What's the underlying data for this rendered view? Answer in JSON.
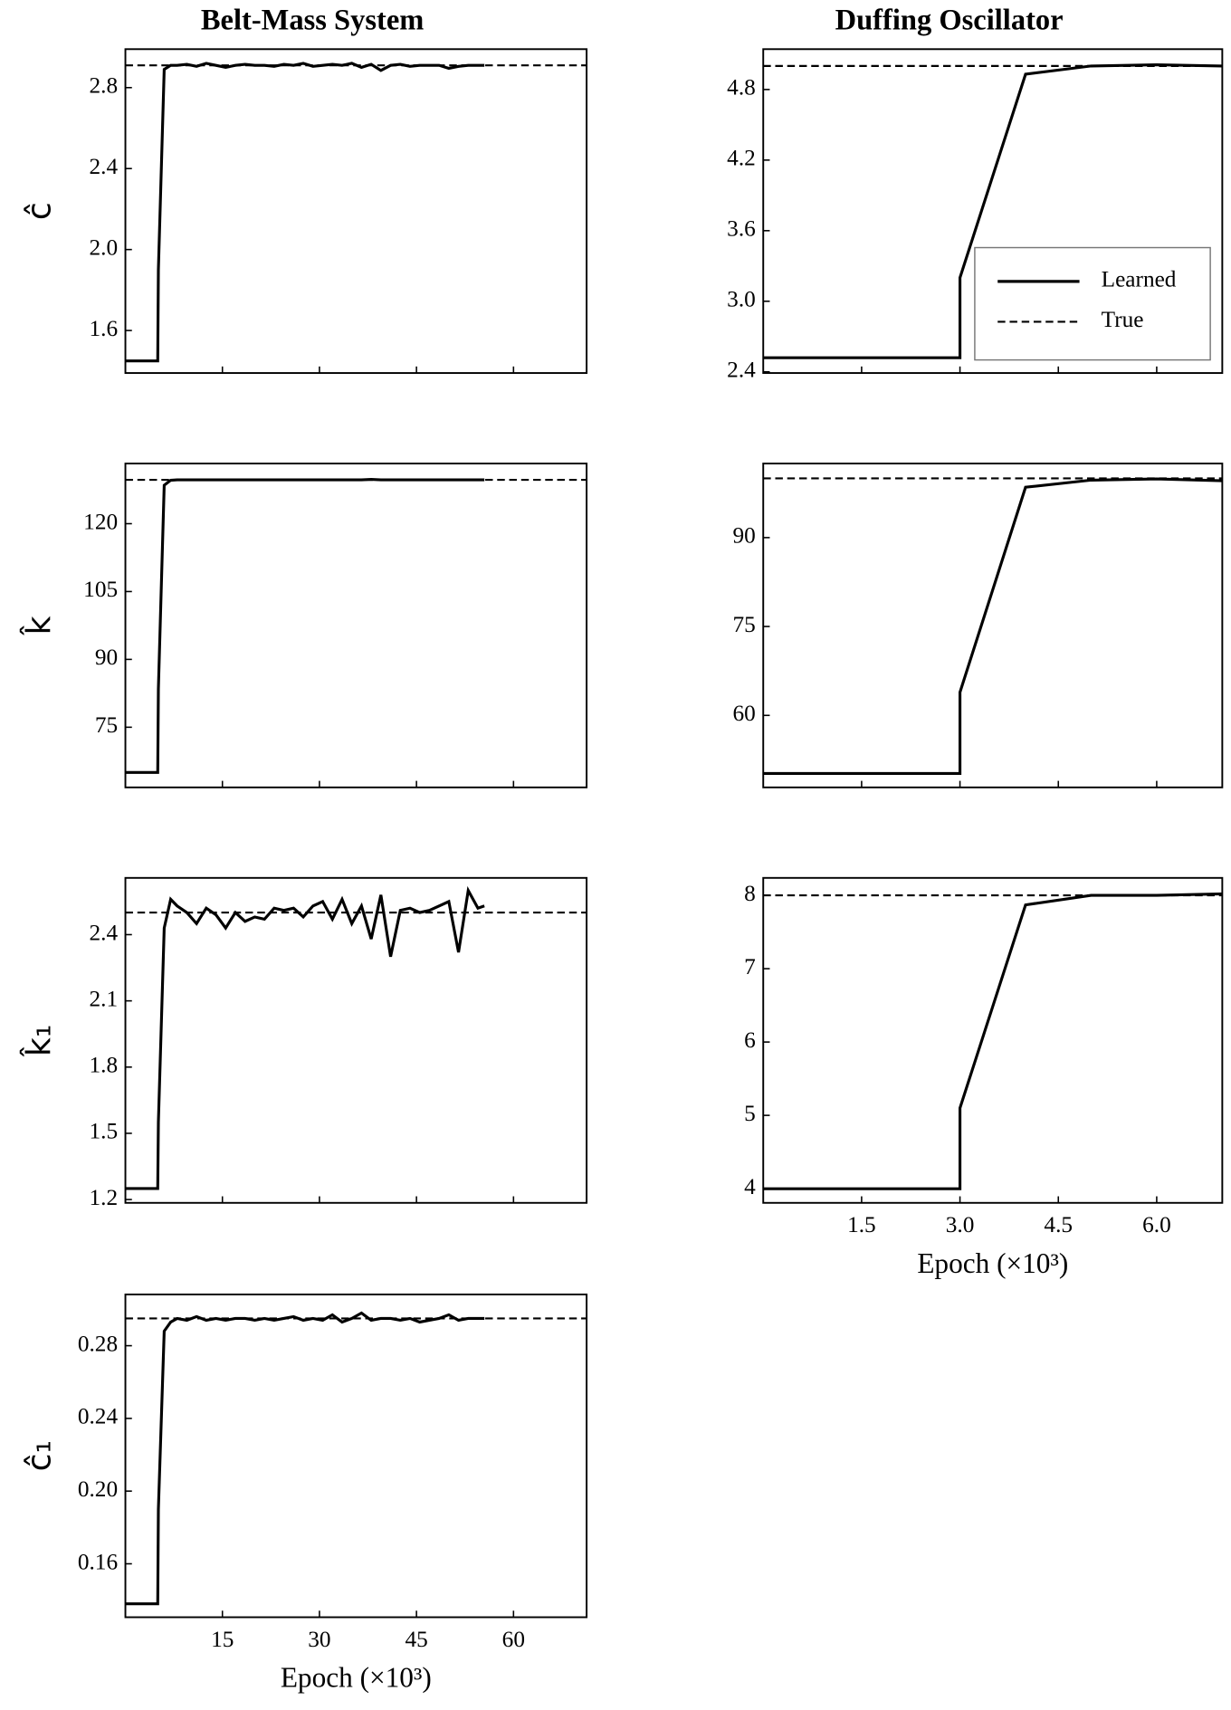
{
  "chart_data": [
    {
      "type": "line",
      "title": "Belt-Mass System",
      "ylabel": "ĉ",
      "x": [
        0,
        5,
        5.1,
        6,
        7,
        8,
        9.5,
        11,
        12.5,
        14,
        15.5,
        17,
        18.5,
        20,
        21.5,
        23,
        24.5,
        26,
        27.5,
        29,
        30.5,
        32,
        33.5,
        35,
        36.5,
        38,
        39.5,
        41,
        42.5,
        44,
        45.5,
        47,
        48.5,
        50,
        51.5,
        53,
        54.5,
        55.5
      ],
      "series": [
        {
          "color": "#000000",
          "linestyle": "solid",
          "values": [
            1.45,
            1.45,
            1.9,
            2.89,
            2.91,
            2.91,
            2.915,
            2.905,
            2.92,
            2.91,
            2.9,
            2.91,
            2.915,
            2.91,
            2.91,
            2.905,
            2.915,
            2.91,
            2.92,
            2.905,
            2.91,
            2.915,
            2.91,
            2.92,
            2.9,
            2.915,
            2.885,
            2.91,
            2.915,
            2.905,
            2.91,
            2.91,
            2.91,
            2.895,
            2.905,
            2.91,
            2.91,
            2.91
          ]
        },
        {
          "color": "#000000",
          "linestyle": "dashed",
          "x": [
            0,
            71.3
          ],
          "values": [
            2.91,
            2.91
          ]
        }
      ],
      "xlim": [
        0,
        71.3
      ],
      "xticks": [
        15,
        30,
        45,
        60
      ],
      "show_xtick_labels": false,
      "ylim": [
        1.39,
        2.99
      ],
      "yticks": [
        1.6,
        {
          "value": 2.0,
          "label": "2.0"
        },
        2.4,
        2.8
      ]
    },
    {
      "type": "line",
      "ylabel": "k̂",
      "x": [
        0,
        5,
        5.1,
        6,
        7,
        8,
        9.5,
        11,
        12.5,
        14,
        15.5,
        17,
        18.5,
        20,
        21.5,
        23,
        24.5,
        26,
        27.5,
        29,
        30.5,
        32,
        33.5,
        35,
        36.5,
        38,
        39.5,
        41,
        42.5,
        44,
        45.5,
        47,
        48.5,
        50,
        51.5,
        53,
        54.5,
        55.5
      ],
      "series": [
        {
          "color": "#000000",
          "linestyle": "solid",
          "values": [
            65,
            65,
            83.5,
            128.5,
            129.6,
            129.7,
            129.7,
            129.7,
            129.7,
            129.7,
            129.7,
            129.7,
            129.7,
            129.7,
            129.7,
            129.7,
            129.7,
            129.7,
            129.7,
            129.7,
            129.7,
            129.7,
            129.7,
            129.7,
            129.7,
            129.8,
            129.7,
            129.7,
            129.7,
            129.7,
            129.7,
            129.7,
            129.7,
            129.7,
            129.7,
            129.7,
            129.7,
            129.7
          ]
        },
        {
          "color": "#000000",
          "linestyle": "dashed",
          "x": [
            0,
            71.3
          ],
          "values": [
            129.7,
            129.7
          ]
        }
      ],
      "xlim": [
        0,
        71.3
      ],
      "xticks": [
        15,
        30,
        45,
        60
      ],
      "show_xtick_labels": false,
      "ylim": [
        61.7,
        133.3
      ],
      "yticks": [
        75,
        90,
        105,
        120
      ]
    },
    {
      "type": "line",
      "ylabel": "k̂₁",
      "x": [
        0,
        5,
        5.1,
        6,
        7,
        8,
        9.5,
        11,
        12.5,
        14,
        15.5,
        17,
        18.5,
        20,
        21.5,
        23,
        24.5,
        26,
        27.5,
        29,
        30.5,
        32,
        33.5,
        35,
        36.5,
        38,
        39.5,
        41,
        42.5,
        44,
        45.5,
        47,
        48.5,
        50,
        51.5,
        53,
        54.5,
        55.5
      ],
      "series": [
        {
          "color": "#000000",
          "linestyle": "solid",
          "values": [
            1.25,
            1.25,
            1.55,
            2.43,
            2.56,
            2.53,
            2.5,
            2.45,
            2.52,
            2.49,
            2.43,
            2.5,
            2.46,
            2.48,
            2.47,
            2.52,
            2.51,
            2.52,
            2.48,
            2.53,
            2.55,
            2.47,
            2.56,
            2.45,
            2.53,
            2.38,
            2.58,
            2.3,
            2.51,
            2.52,
            2.5,
            2.51,
            2.53,
            2.55,
            2.32,
            2.6,
            2.52,
            2.53
          ]
        },
        {
          "color": "#000000",
          "linestyle": "dashed",
          "x": [
            0,
            71.3
          ],
          "values": [
            2.5,
            2.5
          ]
        }
      ],
      "xlim": [
        0,
        71.3
      ],
      "xticks": [
        15,
        30,
        45,
        60
      ],
      "show_xtick_labels": false,
      "ylim": [
        1.185,
        2.657
      ],
      "yticks": [
        1.2,
        1.5,
        1.8,
        2.1,
        2.4
      ]
    },
    {
      "type": "line",
      "ylabel": "ĉ₁",
      "xlabel": "Epoch (×10³)",
      "x": [
        0,
        5,
        5.1,
        6,
        7,
        8,
        9.5,
        11,
        12.5,
        14,
        15.5,
        17,
        18.5,
        20,
        21.5,
        23,
        24.5,
        26,
        27.5,
        29,
        30.5,
        32,
        33.5,
        35,
        36.5,
        38,
        39.5,
        41,
        42.5,
        44,
        45.5,
        47,
        48.5,
        50,
        51.5,
        53,
        54.5,
        55.5
      ],
      "series": [
        {
          "color": "#000000",
          "linestyle": "solid",
          "values": [
            0.138,
            0.138,
            0.19,
            0.288,
            0.293,
            0.295,
            0.294,
            0.296,
            0.294,
            0.295,
            0.294,
            0.295,
            0.295,
            0.294,
            0.295,
            0.294,
            0.295,
            0.296,
            0.294,
            0.295,
            0.294,
            0.297,
            0.293,
            0.295,
            0.298,
            0.294,
            0.295,
            0.295,
            0.294,
            0.295,
            0.293,
            0.294,
            0.295,
            0.297,
            0.294,
            0.295,
            0.295,
            0.295
          ]
        },
        {
          "color": "#000000",
          "linestyle": "dashed",
          "x": [
            0,
            71.3
          ],
          "values": [
            0.295,
            0.295
          ]
        }
      ],
      "xlim": [
        0,
        71.3
      ],
      "xticks": [
        15,
        30,
        45,
        60
      ],
      "show_xtick_labels": true,
      "ylim": [
        0.1306,
        0.3082
      ],
      "yticks": [
        0.16,
        {
          "value": 0.2,
          "label": "0.20"
        },
        0.24,
        0.28
      ]
    },
    {
      "type": "line",
      "title": "Duffing Oscillator",
      "x": [
        0,
        3,
        3,
        4,
        5,
        6,
        7
      ],
      "series": [
        {
          "name": "Learned",
          "color": "#000000",
          "linestyle": "solid",
          "values": [
            2.52,
            2.52,
            3.2,
            4.93,
            5.0,
            5.01,
            5.0
          ]
        },
        {
          "name": "True",
          "color": "#000000",
          "linestyle": "dashed",
          "x": [
            0,
            7
          ],
          "values": [
            5.0,
            5.0
          ]
        }
      ],
      "legend": "lower right",
      "xlim": [
        0,
        7
      ],
      "xticks": [
        {
          "value": 1.5,
          "label": "1.5"
        },
        {
          "value": 3.0,
          "label": "3.0"
        },
        {
          "value": 4.5,
          "label": "4.5"
        },
        {
          "value": 6.0,
          "label": "6.0"
        }
      ],
      "show_xtick_labels": false,
      "ylim": [
        2.39,
        5.143
      ],
      "yticks": [
        2.4,
        {
          "value": 3.0,
          "label": "3.0"
        },
        3.6,
        4.2,
        4.8
      ]
    },
    {
      "type": "line",
      "x": [
        0,
        3,
        3,
        4,
        5,
        6,
        7
      ],
      "series": [
        {
          "color": "#000000",
          "linestyle": "solid",
          "values": [
            50.2,
            50.2,
            63.9,
            98.5,
            99.7,
            99.9,
            99.6
          ]
        },
        {
          "color": "#000000",
          "linestyle": "dashed",
          "x": [
            0,
            7
          ],
          "values": [
            100,
            100
          ]
        }
      ],
      "xlim": [
        0,
        7
      ],
      "xticks": [
        {
          "value": 1.5,
          "label": "1.5"
        },
        {
          "value": 3.0,
          "label": "3.0"
        },
        {
          "value": 4.5,
          "label": "4.5"
        },
        {
          "value": 6.0,
          "label": "6.0"
        }
      ],
      "show_xtick_labels": false,
      "ylim": [
        47.85,
        102.5
      ],
      "yticks": [
        60,
        75,
        90
      ]
    },
    {
      "type": "line",
      "xlabel": "Epoch (×10³)",
      "x": [
        0,
        3,
        3,
        4,
        5,
        6,
        7
      ],
      "series": [
        {
          "color": "#000000",
          "linestyle": "solid",
          "values": [
            4.0,
            4.0,
            5.1,
            7.87,
            8.0,
            8.0,
            8.02
          ]
        },
        {
          "color": "#000000",
          "linestyle": "dashed",
          "x": [
            0,
            7
          ],
          "values": [
            8,
            8
          ]
        }
      ],
      "xlim": [
        0,
        7
      ],
      "xticks": [
        {
          "value": 1.5,
          "label": "1.5"
        },
        {
          "value": 3.0,
          "label": "3.0"
        },
        {
          "value": 4.5,
          "label": "4.5"
        },
        {
          "value": 6.0,
          "label": "6.0"
        }
      ],
      "show_xtick_labels": true,
      "ylim": [
        3.807,
        8.238
      ],
      "yticks": [
        4,
        5,
        6,
        7,
        8
      ]
    }
  ]
}
